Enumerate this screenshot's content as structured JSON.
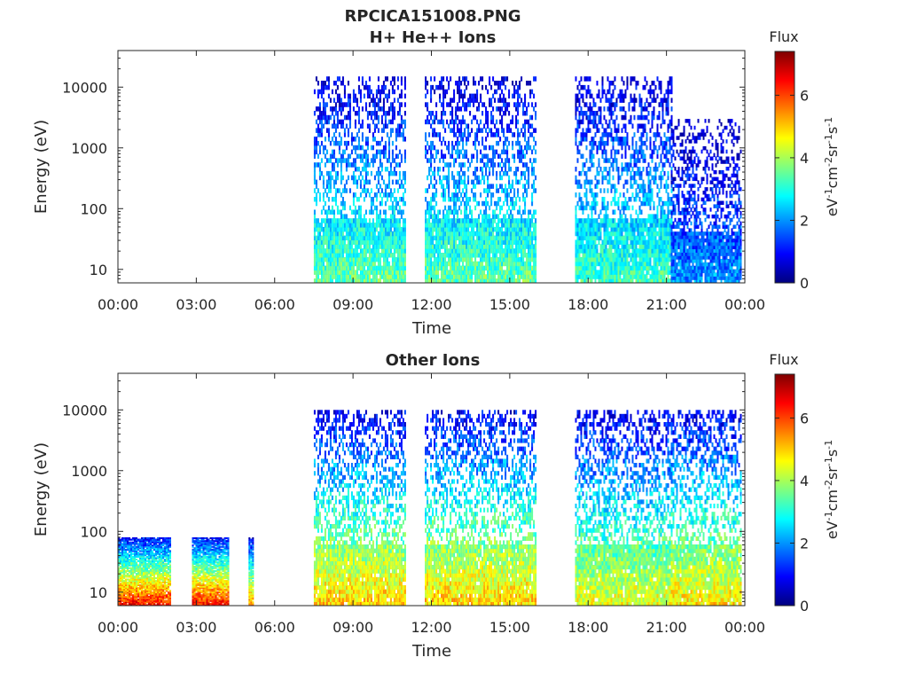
{
  "figure": {
    "title": "RPCICA151008.PNG"
  },
  "colorbar_colors": [
    "#00007f",
    "#0000ff",
    "#007fff",
    "#00ffff",
    "#7fff7f",
    "#ffff00",
    "#ff7f00",
    "#ff0000",
    "#7f0000"
  ],
  "chart_data": [
    {
      "type": "heatmap",
      "title": "H+ He++ Ions",
      "xlabel": "Time",
      "ylabel": "Energy (eV)",
      "y_scale": "log",
      "xlim": [
        "00:00",
        "00:00 (+24h)"
      ],
      "ylim": [
        6,
        40000
      ],
      "x_ticks": [
        "00:00",
        "03:00",
        "06:00",
        "09:00",
        "12:00",
        "15:00",
        "18:00",
        "21:00",
        "00:00"
      ],
      "y_ticks": [
        "10",
        "100",
        "1000",
        "10000"
      ],
      "colorbar": {
        "label": "Flux",
        "unit": "eV⁻¹cm⁻²sr⁻¹s⁻¹",
        "range": [
          0,
          7.4
        ],
        "ticks": [
          "0",
          "2",
          "4",
          "6"
        ],
        "colormap": "jet"
      },
      "data_intervals": [
        {
          "start": "07:30",
          "end": "11:00",
          "max_energy_eV": 15000,
          "low_energy_flux": 3.5
        },
        {
          "start": "11:45",
          "end": "16:00",
          "max_energy_eV": 15000,
          "low_energy_flux": 3.5
        },
        {
          "start": "17:30",
          "end": "21:10",
          "max_energy_eV": 15000,
          "low_energy_flux": 3.3
        },
        {
          "start": "21:10",
          "end": "23:50",
          "max_energy_eV": 3000,
          "low_energy_flux": 2.0
        }
      ]
    },
    {
      "type": "heatmap",
      "title": "Other Ions",
      "xlabel": "Time",
      "ylabel": "Energy (eV)",
      "y_scale": "log",
      "xlim": [
        "00:00",
        "00:00 (+24h)"
      ],
      "ylim": [
        6,
        40000
      ],
      "x_ticks": [
        "00:00",
        "03:00",
        "06:00",
        "09:00",
        "12:00",
        "15:00",
        "18:00",
        "21:00",
        "00:00"
      ],
      "y_ticks": [
        "10",
        "100",
        "1000",
        "10000"
      ],
      "colorbar": {
        "label": "Flux",
        "unit": "eV⁻¹cm⁻²sr⁻¹s⁻¹",
        "range": [
          0,
          7.4
        ],
        "ticks": [
          "0",
          "2",
          "4",
          "6"
        ],
        "colormap": "jet"
      },
      "data_intervals": [
        {
          "start": "00:00",
          "end": "02:00",
          "max_energy_eV": 80,
          "low_energy_flux": 6.5
        },
        {
          "start": "02:50",
          "end": "04:15",
          "max_energy_eV": 80,
          "low_energy_flux": 6.5
        },
        {
          "start": "05:00",
          "end": "05:10",
          "max_energy_eV": 80,
          "low_energy_flux": 5.5
        },
        {
          "start": "07:30",
          "end": "11:00",
          "max_energy_eV": 10000,
          "low_energy_flux": 5.0
        },
        {
          "start": "11:45",
          "end": "16:00",
          "max_energy_eV": 10000,
          "low_energy_flux": 5.0
        },
        {
          "start": "17:30",
          "end": "21:10",
          "max_energy_eV": 10000,
          "low_energy_flux": 4.5
        },
        {
          "start": "21:10",
          "end": "23:50",
          "max_energy_eV": 10000,
          "low_energy_flux": 4.8
        }
      ]
    }
  ]
}
